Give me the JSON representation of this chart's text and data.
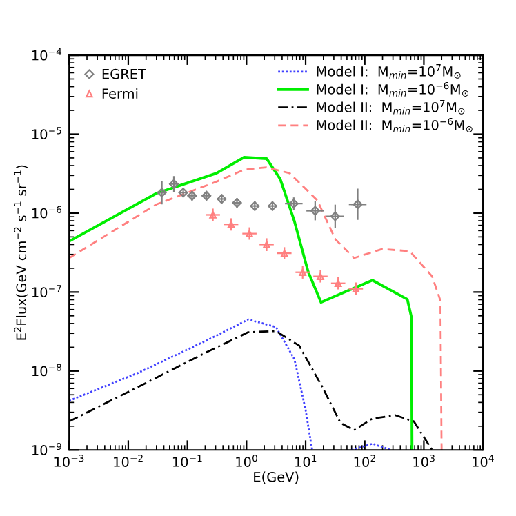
{
  "chart_data": {
    "type": "line",
    "xlabel": "E(GeV)",
    "ylabel": "E$^{2}$Flux(GeV cm$^{−2}$ s$^{−1}$ sr$^{−1}$)",
    "log": "xy",
    "xlim": [
      0.001,
      10000
    ],
    "ylim": [
      1e-09,
      0.0001
    ],
    "xticks": [
      {
        "value": 0.001,
        "label": "10$^{−3}$"
      },
      {
        "value": 0.01,
        "label": "10$^{−2}$"
      },
      {
        "value": 0.1,
        "label": "10$^{−1}$"
      },
      {
        "value": 1,
        "label": "10$^{0}$"
      },
      {
        "value": 10,
        "label": "10$^{1}$"
      },
      {
        "value": 100,
        "label": "10$^{2}$"
      },
      {
        "value": 1000,
        "label": "10$^{3}$"
      },
      {
        "value": 10000,
        "label": "10$^{4}$"
      }
    ],
    "yticks": [
      {
        "value": 1e-09,
        "label": "10$^{−9}$"
      },
      {
        "value": 1e-08,
        "label": "10$^{−8}$"
      },
      {
        "value": 1e-07,
        "label": "10$^{−7}$"
      },
      {
        "value": 1e-06,
        "label": "10$^{−6}$"
      },
      {
        "value": 1e-05,
        "label": "10$^{−5}$"
      },
      {
        "value": 0.0001,
        "label": "10$^{−4}$"
      }
    ],
    "grid": false,
    "legend": "top",
    "series": [
      {
        "type": "scatter",
        "name": "EGRET",
        "color": "#808080",
        "marker": "diamond",
        "x": [
          0.037,
          0.059,
          0.085,
          0.12,
          0.21,
          0.38,
          0.69,
          1.38,
          2.75,
          6.3,
          14.5,
          31.6,
          76
        ],
        "values": [
          1.82e-06,
          2.34e-06,
          1.82e-06,
          1.66e-06,
          1.66e-06,
          1.51e-06,
          1.35e-06,
          1.23e-06,
          1.23e-06,
          1.32e-06,
          1.07e-06,
          9.1e-07,
          1.29e-06
        ],
        "errors": [
          [
            1.29e-06,
            2.57e-06
          ],
          [
            1.86e-06,
            2.95e-06
          ],
          [
            1.58e-06,
            2.09e-06
          ],
          [
            1.44e-06,
            1.91e-06
          ],
          [
            1.44e-06,
            1.91e-06
          ],
          [
            1.31e-06,
            1.74e-06
          ],
          [
            1.17e-06,
            1.55e-06
          ],
          [
            1.07e-06,
            1.41e-06
          ],
          [
            1.07e-06,
            1.41e-06
          ],
          [
            1.1e-06,
            1.58e-06
          ],
          [
            8.1e-07,
            1.41e-06
          ],
          [
            6.5e-07,
            1.28e-06
          ],
          [
            8.2e-07,
            2.04e-06
          ]
        ],
        "xerrors": [
          [
            0.031,
            0.044
          ],
          [
            0.049,
            0.071
          ],
          [
            0.071,
            0.102
          ],
          [
            0.1,
            0.144
          ],
          [
            0.175,
            0.252
          ],
          [
            0.317,
            0.456
          ],
          [
            0.575,
            0.828
          ],
          [
            1.15,
            1.66
          ],
          [
            2.29,
            3.3
          ],
          [
            4.47,
            8.88
          ],
          [
            10.3,
            20.4
          ],
          [
            22.4,
            44.6
          ],
          [
            53.9,
            107
          ]
        ]
      },
      {
        "type": "scatter",
        "name": "Fermi",
        "color": "#ff8080",
        "marker": "triangle",
        "x": [
          0.27,
          0.55,
          1.12,
          2.19,
          4.37,
          8.9,
          17.8,
          35.5,
          70.8
        ],
        "values": [
          9.5e-07,
          7.2e-07,
          5.5e-07,
          4e-07,
          3.1e-07,
          1.78e-07,
          1.58e-07,
          1.29e-07,
          1.1e-07
        ],
        "errors": [
          [
            7.9e-07,
            1.14e-06
          ],
          [
            6e-07,
            8.6e-07
          ],
          [
            4.6e-07,
            6.6e-07
          ],
          [
            3.3e-07,
            4.8e-07
          ],
          [
            2.6e-07,
            3.7e-07
          ],
          [
            1.48e-07,
            2.14e-07
          ],
          [
            1.32e-07,
            1.9e-07
          ],
          [
            1.08e-07,
            1.55e-07
          ],
          [
            9.2e-08,
            1.32e-07
          ]
        ],
        "xerrors": [
          [
            0.205,
            0.356
          ],
          [
            0.417,
            0.726
          ],
          [
            0.85,
            1.48
          ],
          [
            1.66,
            2.89
          ],
          [
            3.31,
            5.77
          ],
          [
            6.74,
            11.7
          ],
          [
            13.5,
            23.5
          ],
          [
            26.9,
            46.9
          ],
          [
            53.6,
            93.5
          ]
        ]
      },
      {
        "name": "Model I:  M$_{min}$=10$^{7}$M$_{⊙}$",
        "color": "#4040ff",
        "line_style": "dotted",
        "x": [
          0.001,
          0.0148,
          0.214,
          1.07,
          3.16,
          6.46,
          10,
          12.9,
          30,
          60,
          135,
          275
        ],
        "values": [
          4.2e-09,
          9.5e-09,
          2.45e-08,
          4.5e-08,
          3.6e-08,
          1.41e-08,
          3.2e-09,
          1e-09,
          null,
          1e-09,
          1.2e-09,
          1e-09
        ]
      },
      {
        "name": "Model I:  M$_{min}$=10$^{−6}$M$_{⊙}$",
        "color": "#00ee00",
        "line_style": "solid",
        "x": [
          0.001,
          0.03,
          0.31,
          0.91,
          2.19,
          3.72,
          6.46,
          11,
          18.2,
          38.9,
          135,
          525,
          617,
          631
        ],
        "values": [
          4.4e-07,
          1.78e-06,
          3.2e-06,
          5.1e-06,
          4.9e-06,
          2.7e-06,
          7.9e-07,
          1.82e-07,
          7.4e-08,
          9.5e-08,
          1.41e-07,
          8.1e-08,
          4.8e-08,
          1e-09
        ]
      },
      {
        "name": "Model II:  M$_{min}$=10$^{7}$M$_{⊙}$",
        "color": "#000000",
        "line_style": "dashdot",
        "x": [
          0.001,
          0.0148,
          0.214,
          1.07,
          3.16,
          7.76,
          19.1,
          38.9,
          66,
          135,
          331,
          676,
          1380
        ],
        "values": [
          2.3e-09,
          6.3e-09,
          1.74e-08,
          3.1e-08,
          3.2e-08,
          2.1e-08,
          6.3e-09,
          2.2e-09,
          1.78e-09,
          2.5e-09,
          2.75e-09,
          2.3e-09,
          1e-09
        ]
      },
      {
        "name": "Model II:  M$_{min}$=10$^{−6}$M$_{⊙}$",
        "color": "#ff8080",
        "line_style": "dashed",
        "x": [
          0.001,
          0.03,
          0.31,
          0.91,
          2.19,
          5.37,
          15.8,
          31.6,
          66,
          195,
          575,
          1380,
          1905,
          1995
        ],
        "values": [
          2.7e-07,
          1.29e-06,
          2.5e-06,
          3.55e-06,
          3.8e-06,
          3.2e-06,
          1.45e-06,
          4.7e-07,
          2.7e-07,
          3.5e-07,
          3.3e-07,
          1.58e-07,
          7.8e-08,
          1e-09
        ]
      }
    ]
  }
}
